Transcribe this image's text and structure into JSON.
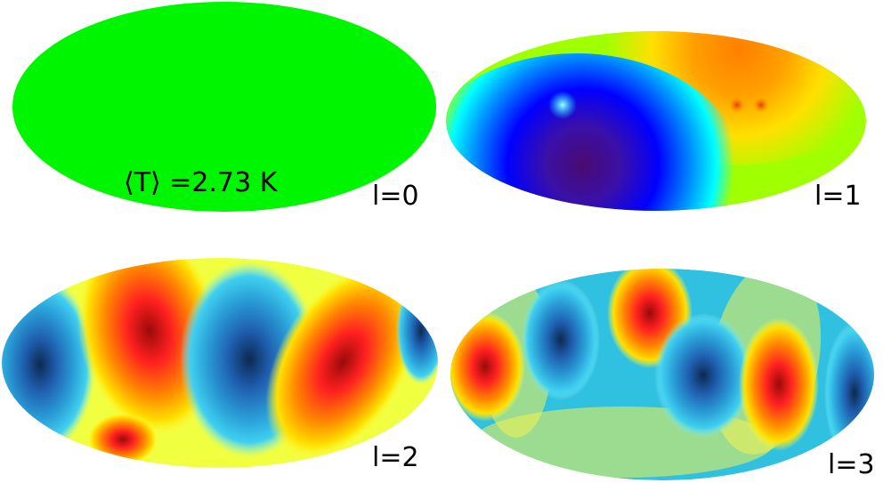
{
  "colors": {
    "background": "#ffffff",
    "monopole_fill": "#00f500"
  },
  "panels": [
    {
      "id": "monopole",
      "label": "l=0",
      "annotation": "⟨T⟩ =2.73 K"
    },
    {
      "id": "dipole",
      "label": "l=1"
    },
    {
      "id": "quadrupole",
      "label": "l=2"
    },
    {
      "id": "octupole",
      "label": "l=3"
    }
  ]
}
